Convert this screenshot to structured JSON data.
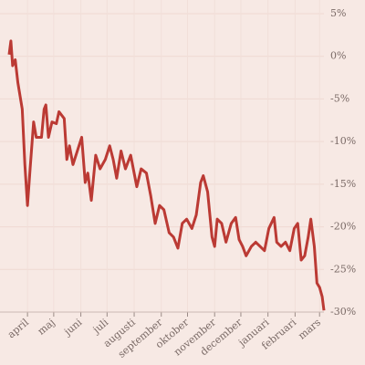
{
  "chart_data": {
    "type": "line",
    "x": [
      0,
      2,
      4,
      7,
      10,
      15,
      18,
      21,
      24,
      28,
      31,
      37,
      40,
      42,
      45,
      49,
      54,
      57,
      63,
      66,
      69,
      73,
      78,
      83,
      87,
      90,
      94,
      99,
      104,
      110,
      115,
      119,
      123,
      128,
      133,
      139,
      146,
      151,
      157,
      162,
      167,
      172,
      177,
      183,
      188,
      193,
      198,
      203,
      209,
      214,
      219,
      222,
      227,
      232,
      235,
      238,
      243,
      248,
      254,
      259,
      263,
      267,
      271,
      277,
      282,
      287,
      292,
      297,
      303,
      306,
      311,
      316,
      321,
      326,
      330,
      334,
      338,
      342,
      345,
      349,
      352,
      355,
      358,
      360
    ],
    "series": [
      {
        "color": "#bb3a34",
        "values": [
          0.2,
          1.8,
          -1.1,
          -0.4,
          -3.1,
          -6.2,
          -12.7,
          -17.5,
          -13.2,
          -7.7,
          -9.5,
          -9.5,
          -6.2,
          -5.7,
          -9.5,
          -7.7,
          -7.9,
          -6.5,
          -7.3,
          -12.1,
          -10.5,
          -12.7,
          -11.1,
          -9.5,
          -14.8,
          -13.7,
          -16.9,
          -11.6,
          -13.2,
          -12.1,
          -10.5,
          -12.1,
          -14.3,
          -11.1,
          -13.2,
          -11.6,
          -15.3,
          -13.2,
          -13.7,
          -16.4,
          -19.6,
          -17.5,
          -18.0,
          -20.7,
          -21.2,
          -22.5,
          -19.6,
          -19.1,
          -20.2,
          -18.6,
          -14.8,
          -14.0,
          -15.9,
          -21.2,
          -22.3,
          -19.1,
          -19.6,
          -21.8,
          -19.6,
          -18.9,
          -21.5,
          -22.3,
          -23.4,
          -22.3,
          -21.8,
          -22.3,
          -22.8,
          -20.2,
          -18.9,
          -21.8,
          -22.3,
          -21.8,
          -22.8,
          -20.2,
          -19.6,
          -23.9,
          -23.4,
          -21.2,
          -19.1,
          -22.3,
          -26.6,
          -27.1,
          -28.2,
          -29.8
        ]
      }
    ],
    "xlim": [
      0,
      360
    ],
    "xticks": [
      {
        "value": 21,
        "label": "april"
      },
      {
        "value": 51,
        "label": "maj"
      },
      {
        "value": 82,
        "label": "juni"
      },
      {
        "value": 112,
        "label": "juli"
      },
      {
        "value": 143,
        "label": "augusti"
      },
      {
        "value": 174,
        "label": "september"
      },
      {
        "value": 204,
        "label": "oktober"
      },
      {
        "value": 235,
        "label": "november"
      },
      {
        "value": 265,
        "label": "december"
      },
      {
        "value": 296,
        "label": "januari"
      },
      {
        "value": 327,
        "label": "februari"
      },
      {
        "value": 355,
        "label": "mars"
      }
    ],
    "ylim": [
      5,
      -30
    ],
    "yticks": [
      {
        "value": 5,
        "label": "5%"
      },
      {
        "value": 0,
        "label": "0%"
      },
      {
        "value": -5,
        "label": "-5%"
      },
      {
        "value": -10,
        "label": "-10%"
      },
      {
        "value": -15,
        "label": "-15%"
      },
      {
        "value": -20,
        "label": "-20%"
      },
      {
        "value": -25,
        "label": "-25%"
      },
      {
        "value": -30,
        "label": "-30%"
      }
    ],
    "grid": true
  }
}
